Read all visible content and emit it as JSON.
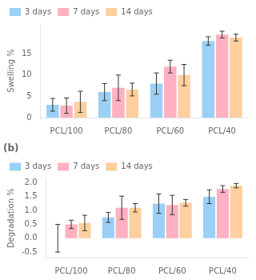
{
  "chart_data": [
    {
      "type": "bar",
      "ylabel": "Swelling %",
      "categories": [
        "PCL/100",
        "PCL/80",
        "PCL/60",
        "PCL/40"
      ],
      "series": [
        {
          "name": "3 days",
          "values": [
            3.0,
            6.0,
            8.0,
            18.0
          ],
          "errors": [
            1.5,
            2.0,
            2.5,
            1.0
          ]
        },
        {
          "name": "7 days",
          "values": [
            2.8,
            7.0,
            12.0,
            19.5
          ],
          "errors": [
            1.8,
            3.0,
            1.5,
            0.8
          ]
        },
        {
          "name": "14 days",
          "values": [
            3.7,
            6.6,
            10.0,
            18.8
          ],
          "errors": [
            2.5,
            1.5,
            2.5,
            0.8
          ]
        }
      ],
      "ylim": [
        0,
        22
      ],
      "yticks": [
        0,
        5,
        10,
        15
      ],
      "grid": false,
      "legend": "upper left"
    },
    {
      "type": "bar",
      "ylabel": "Degradation %",
      "annotation": "(b)",
      "categories": [
        "PCL/100",
        "PCL/80",
        "PCL/60",
        "PCL/40"
      ],
      "series": [
        {
          "name": "3 days",
          "values": [
            0.0,
            0.75,
            1.25,
            1.5
          ],
          "errors": [
            0.5,
            0.18,
            0.35,
            0.25
          ]
        },
        {
          "name": "7 days",
          "values": [
            0.5,
            1.1,
            1.2,
            1.78
          ],
          "errors": [
            0.15,
            0.42,
            0.35,
            0.12
          ]
        },
        {
          "name": "14 days",
          "values": [
            0.55,
            1.1,
            1.28,
            1.9
          ],
          "errors": [
            0.28,
            0.15,
            0.12,
            0.08
          ]
        }
      ],
      "ylim": [
        -0.7,
        2.15
      ],
      "yticks": [
        -0.5,
        {
          "value": 0.0,
          "label": "0.0"
        },
        0.5,
        {
          "value": 1.0,
          "label": "1.0"
        },
        1.5,
        {
          "value": 2.0,
          "label": "2.0"
        }
      ],
      "grid": false,
      "legend": "upper left"
    }
  ]
}
